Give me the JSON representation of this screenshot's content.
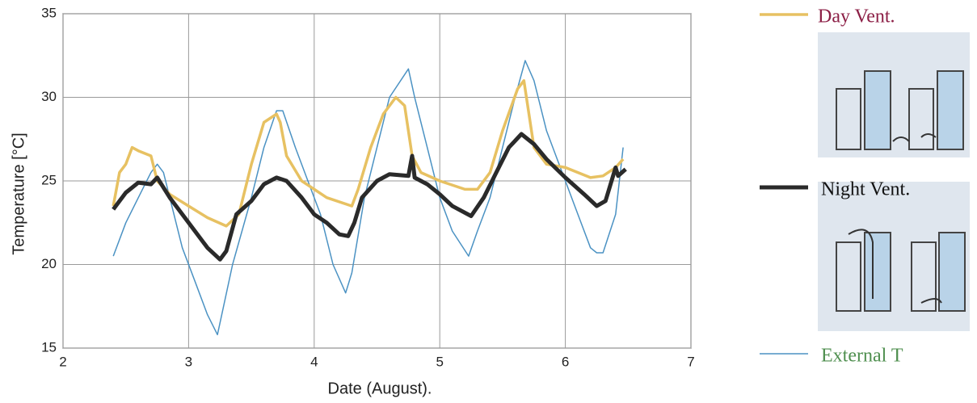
{
  "chart_data": {
    "type": "line",
    "x_label": "Date (August).",
    "y_label": "Temperature [°C]",
    "xlim": [
      2,
      7
    ],
    "ylim": [
      15,
      35
    ],
    "xticks": [
      2,
      3,
      4,
      5,
      6,
      7
    ],
    "yticks": [
      15,
      20,
      25,
      30,
      35
    ],
    "grid": true,
    "legend": "right",
    "series": [
      {
        "name": "Day Vent.",
        "color": "#e7c162",
        "label_color": "#8c1f46",
        "x": [
          2.4,
          2.45,
          2.5,
          2.55,
          2.6,
          2.7,
          2.75,
          2.85,
          3.0,
          3.15,
          3.3,
          3.4,
          3.5,
          3.6,
          3.7,
          3.73,
          3.78,
          3.9,
          4.1,
          4.3,
          4.35,
          4.45,
          4.55,
          4.65,
          4.72,
          4.78,
          4.85,
          5.0,
          5.2,
          5.3,
          5.4,
          5.5,
          5.62,
          5.67,
          5.7,
          5.75,
          5.85,
          6.0,
          6.2,
          6.3,
          6.4,
          6.46
        ],
        "values": [
          23.5,
          25.5,
          26,
          27,
          26.8,
          26.5,
          25,
          24.2,
          23.5,
          22.8,
          22.3,
          23,
          26,
          28.5,
          29,
          28.5,
          26.5,
          25,
          24,
          23.5,
          24.5,
          27,
          29,
          30,
          29.5,
          26.5,
          25.5,
          25,
          24.5,
          24.5,
          25.5,
          28,
          30.5,
          31,
          29.5,
          27,
          26,
          25.8,
          25.2,
          25.3,
          25.8,
          26.3
        ]
      },
      {
        "name": "Night Vent.",
        "color": "#2a2a2a",
        "label_color": "#111111",
        "x": [
          2.4,
          2.5,
          2.6,
          2.7,
          2.75,
          2.85,
          3.0,
          3.15,
          3.25,
          3.3,
          3.38,
          3.5,
          3.6,
          3.7,
          3.78,
          3.9,
          4.0,
          4.1,
          4.2,
          4.27,
          4.32,
          4.38,
          4.5,
          4.6,
          4.75,
          4.78,
          4.8,
          4.9,
          5.0,
          5.1,
          5.25,
          5.35,
          5.45,
          5.55,
          5.65,
          5.75,
          5.85,
          6.0,
          6.15,
          6.25,
          6.32,
          6.4,
          6.42,
          6.48
        ],
        "values": [
          23.3,
          24.3,
          24.9,
          24.8,
          25.2,
          24,
          22.5,
          21,
          20.3,
          20.8,
          23,
          23.8,
          24.8,
          25.2,
          25,
          24,
          23,
          22.5,
          21.8,
          21.7,
          22.5,
          24,
          25,
          25.4,
          25.3,
          26.5,
          25.2,
          24.8,
          24.2,
          23.5,
          22.9,
          24,
          25.5,
          27,
          27.8,
          27.2,
          26.3,
          25.2,
          24.2,
          23.5,
          23.8,
          25.8,
          25.3,
          25.7
        ]
      },
      {
        "name": "External T",
        "color": "#4b92c3",
        "label_color": "#4f8f4f",
        "x": [
          2.4,
          2.5,
          2.6,
          2.7,
          2.75,
          2.8,
          2.95,
          3.05,
          3.15,
          3.23,
          3.35,
          3.5,
          3.6,
          3.7,
          3.75,
          3.85,
          3.95,
          4.05,
          4.15,
          4.25,
          4.3,
          4.4,
          4.5,
          4.6,
          4.75,
          4.8,
          4.9,
          5.0,
          5.1,
          5.23,
          5.3,
          5.4,
          5.5,
          5.6,
          5.68,
          5.75,
          5.85,
          6.0,
          6.1,
          6.2,
          6.25,
          6.3,
          6.4,
          6.46
        ],
        "values": [
          20.5,
          22.5,
          24,
          25.5,
          26,
          25.5,
          21,
          19,
          17,
          15.8,
          20,
          24,
          27,
          29.2,
          29.2,
          27,
          25,
          23,
          20,
          18.3,
          19.5,
          24,
          27,
          30,
          31.7,
          30,
          27,
          24,
          22,
          20.5,
          22,
          24,
          27,
          30,
          32.2,
          31,
          28,
          25,
          23,
          21,
          20.7,
          20.7,
          23,
          27
        ]
      }
    ]
  }
}
